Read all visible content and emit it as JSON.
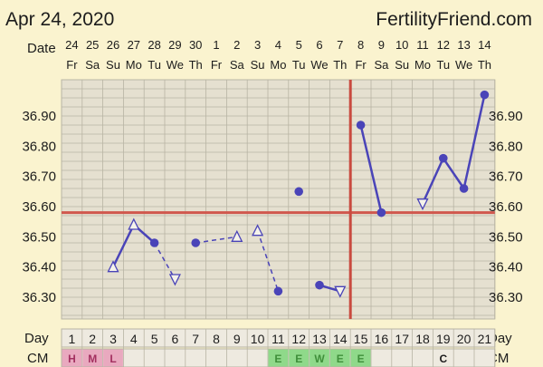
{
  "header": {
    "date": "Apr 24, 2020",
    "site": "FertilityFriend.com"
  },
  "row_labels": {
    "date": "Date",
    "day": "Day",
    "cm": "CM"
  },
  "colors": {
    "series": "#4a44b8",
    "coverline": "#d0574d",
    "ovulation_line": "#c94a3f",
    "cm_fertile": "#8fd98a",
    "cm_period": "#e9a9bf",
    "cm_ewcm_text": "#3f8f3a",
    "cm_period_text": "#a33060",
    "grid_fill": "#e5e0d0",
    "grid_line": "#b8b4a4"
  },
  "chart_data": {
    "type": "line",
    "title": "",
    "y_ticks": [
      "36.30",
      "36.40",
      "36.50",
      "36.60",
      "36.70",
      "36.80",
      "36.90"
    ],
    "ylim": [
      36.21,
      37.0
    ],
    "dates": [
      "24",
      "25",
      "26",
      "27",
      "28",
      "29",
      "30",
      "1",
      "2",
      "3",
      "4",
      "5",
      "6",
      "7",
      "8",
      "9",
      "10",
      "11",
      "12",
      "13",
      "14"
    ],
    "weekdays": [
      "Fr",
      "Sa",
      "Su",
      "Mo",
      "Tu",
      "We",
      "Th",
      "Fr",
      "Sa",
      "Su",
      "Mo",
      "Tu",
      "We",
      "Th",
      "Fr",
      "Sa",
      "Su",
      "Mo",
      "Tu",
      "We",
      "Th"
    ],
    "cycle_days": [
      "1",
      "2",
      "3",
      "4",
      "5",
      "6",
      "7",
      "8",
      "9",
      "10",
      "11",
      "12",
      "13",
      "14",
      "15",
      "16",
      "17",
      "18",
      "19",
      "20",
      "21"
    ],
    "temps": [
      null,
      null,
      36.4,
      36.54,
      36.48,
      36.36,
      36.48,
      null,
      36.5,
      36.52,
      36.32,
      36.65,
      36.34,
      36.32,
      36.87,
      36.58,
      null,
      36.61,
      36.76,
      36.66,
      36.97
    ],
    "marker": [
      "",
      "",
      "open",
      "open",
      "filled",
      "open",
      "filled",
      "",
      "open",
      "open",
      "filled",
      "filled",
      "filled",
      "open",
      "filled",
      "filled",
      "",
      "open",
      "filled",
      "filled",
      "filled"
    ],
    "connect": [
      "solid",
      "solid",
      "solid",
      "solid",
      "dash",
      "",
      "dash",
      "solid",
      "",
      "dash",
      "",
      "",
      "solid",
      "",
      "solid",
      "",
      "dash",
      "solid",
      "solid",
      "solid"
    ],
    "coverline": 36.58,
    "ovulation_day": 14,
    "cm": [
      "H",
      "M",
      "L",
      "",
      "",
      "",
      "",
      "",
      "",
      "",
      "E",
      "E",
      "W",
      "E",
      "E",
      "",
      "",
      "",
      "C",
      "",
      ""
    ],
    "cm_type": [
      "period",
      "period",
      "period",
      "",
      "",
      "",
      "",
      "",
      "",
      "",
      "fertile",
      "fertile",
      "fertile",
      "fertile",
      "fertile",
      "",
      "",
      "",
      "plain",
      "",
      ""
    ],
    "grid": true
  }
}
